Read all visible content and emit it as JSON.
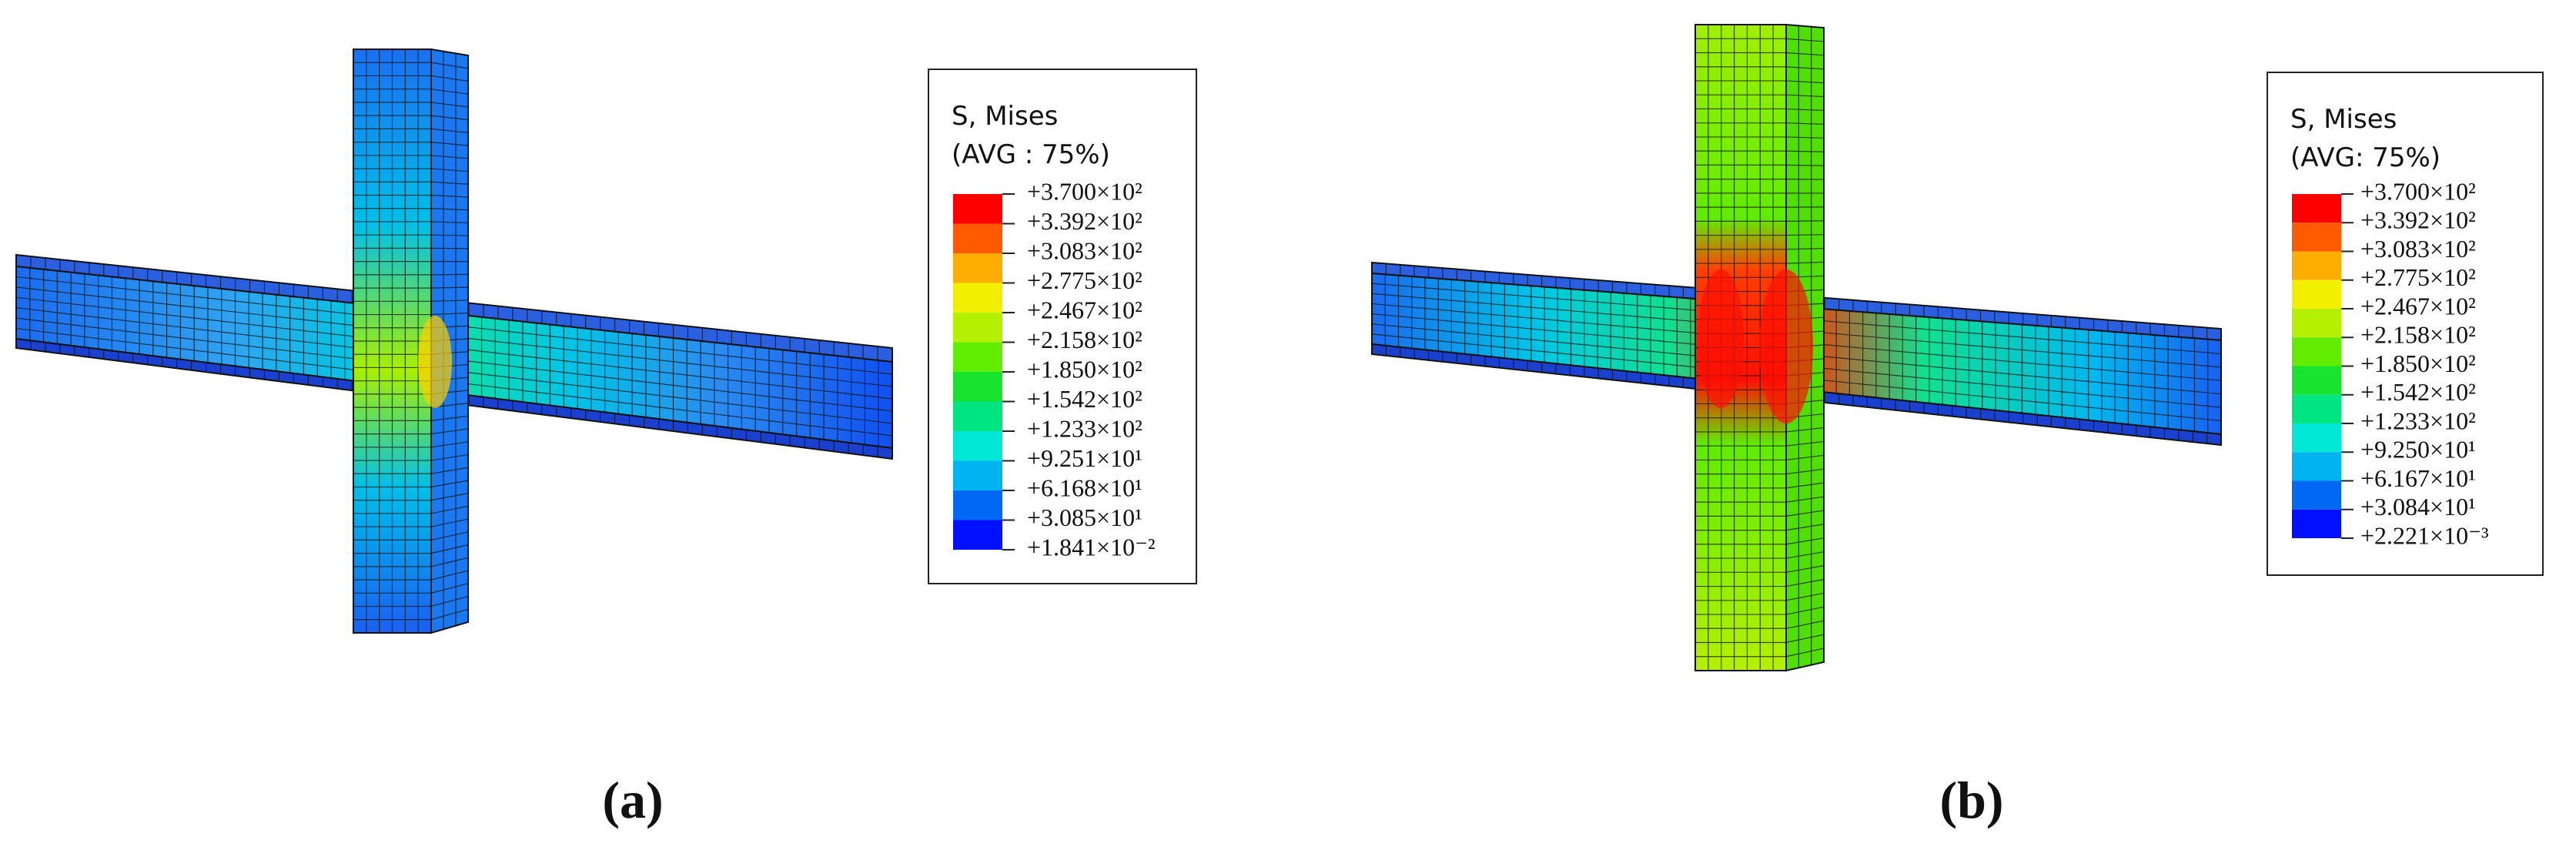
{
  "panels": [
    {
      "legend": {
        "title": "S, Mises",
        "subtitle": "(AVG : 75%)",
        "labels": [
          "+3.700×10²",
          "+3.392×10²",
          "+3.083×10²",
          "+2.775×10²",
          "+2.467×10²",
          "+2.158×10²",
          "+1.850×10²",
          "+1.542×10²",
          "+1.233×10²",
          "+9.251×10¹",
          "+6.168×10¹",
          "+3.085×10¹",
          "+1.841×10⁻²"
        ],
        "colors": [
          "#ff0000",
          "#ff5a00",
          "#ffae00",
          "#f2ef00",
          "#b4f000",
          "#62ec00",
          "#18e430",
          "#00e482",
          "#00e8d4",
          "#00b4f2",
          "#0068f2",
          "#0010ff"
        ]
      },
      "caption": "(a)"
    },
    {
      "legend": {
        "title": "S, Mises",
        "subtitle": "(AVG: 75%)",
        "labels": [
          "+3.700×10²",
          "+3.392×10²",
          "+3.083×10²",
          "+2.775×10²",
          "+2.467×10²",
          "+2.158×10²",
          "+1.850×10²",
          "+1.542×10²",
          "+1.233×10²",
          "+9.250×10¹",
          "+6.167×10¹",
          "+3.084×10¹",
          "+2.221×10⁻³"
        ],
        "colors": [
          "#ff0000",
          "#ff5a00",
          "#ffae00",
          "#f2ef00",
          "#b4f000",
          "#62ec00",
          "#18e430",
          "#00e482",
          "#00e8d4",
          "#00b4f2",
          "#0068f2",
          "#0010ff"
        ]
      },
      "caption": "(b)"
    }
  ]
}
